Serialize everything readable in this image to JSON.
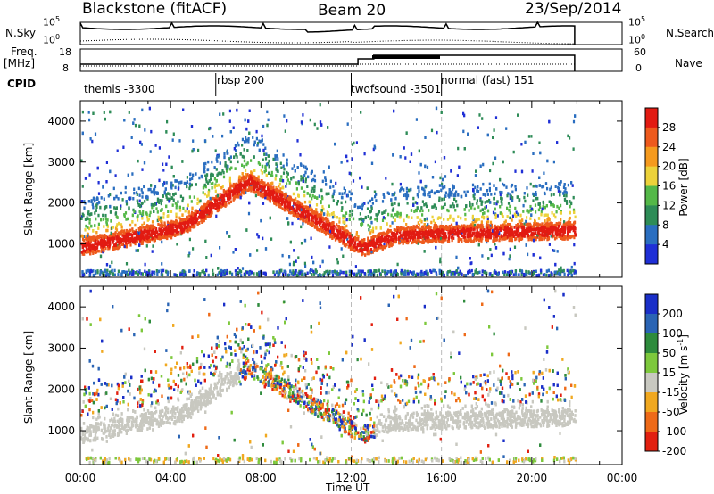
{
  "header": {
    "title": "Blackstone (fitACF)",
    "beam": "Beam 20",
    "date": "23/Sep/2014"
  },
  "top_panels": {
    "nsky_label": "N.Sky",
    "nsearch_label": "N.Search",
    "noise_ticks_left": [
      "10^5",
      "10^0"
    ],
    "noise_ticks_right": [
      "10^5",
      "10^0"
    ],
    "freq_label": "Freq.",
    "freq_unit": "[MHz]",
    "freq_ticks": [
      "18",
      "8"
    ],
    "nave_label": "Nave",
    "nave_ticks": [
      "60",
      "0"
    ],
    "cpid_label": "CPID",
    "cpids": [
      {
        "label": "themis -3300",
        "start": "00:00"
      },
      {
        "label": "rbsp 200",
        "start": "06:00"
      },
      {
        "label": "twofsound -3501",
        "start": "12:00"
      },
      {
        "label": "normal (fast) 151",
        "start": "16:00"
      }
    ]
  },
  "chart_data": [
    {
      "type": "heatmap",
      "title": "",
      "xlabel": "",
      "ylabel": "Slant Range [km]",
      "xlim": [
        "00:00",
        "24:00"
      ],
      "ylim": [
        180,
        4500
      ],
      "yticks": [
        1000,
        2000,
        3000,
        4000
      ],
      "colorbar": {
        "label": "Power [dB]",
        "ticks": [
          4,
          8,
          12,
          16,
          20,
          24,
          28
        ],
        "colors": [
          "#1f2fd6",
          "#2a6ec0",
          "#2e8c57",
          "#54b848",
          "#ecd23a",
          "#f59a1e",
          "#ee5a1d",
          "#e21b12"
        ]
      },
      "ground_scatter": false
    },
    {
      "type": "heatmap",
      "title": "",
      "xlabel": "Time UT",
      "ylabel": "Slant Range [km]",
      "xlim": [
        "00:00",
        "24:00"
      ],
      "ylim": [
        180,
        4500
      ],
      "yticks": [
        1000,
        2000,
        3000,
        4000
      ],
      "xticks": [
        "00:00",
        "04:00",
        "08:00",
        "12:00",
        "16:00",
        "20:00",
        "00:00"
      ],
      "colorbar": {
        "label": "Velocity [m s^-1]",
        "ticks": [
          200,
          100,
          50,
          15,
          -15,
          -50,
          -100,
          -200
        ],
        "colors": [
          "#1a2fc8",
          "#2a64b4",
          "#2e8b3c",
          "#7dc83c",
          "#c8c8c0",
          "#f0a820",
          "#ee6a18",
          "#e22010"
        ]
      },
      "ground_scatter_color": "#c8c8c0"
    }
  ]
}
